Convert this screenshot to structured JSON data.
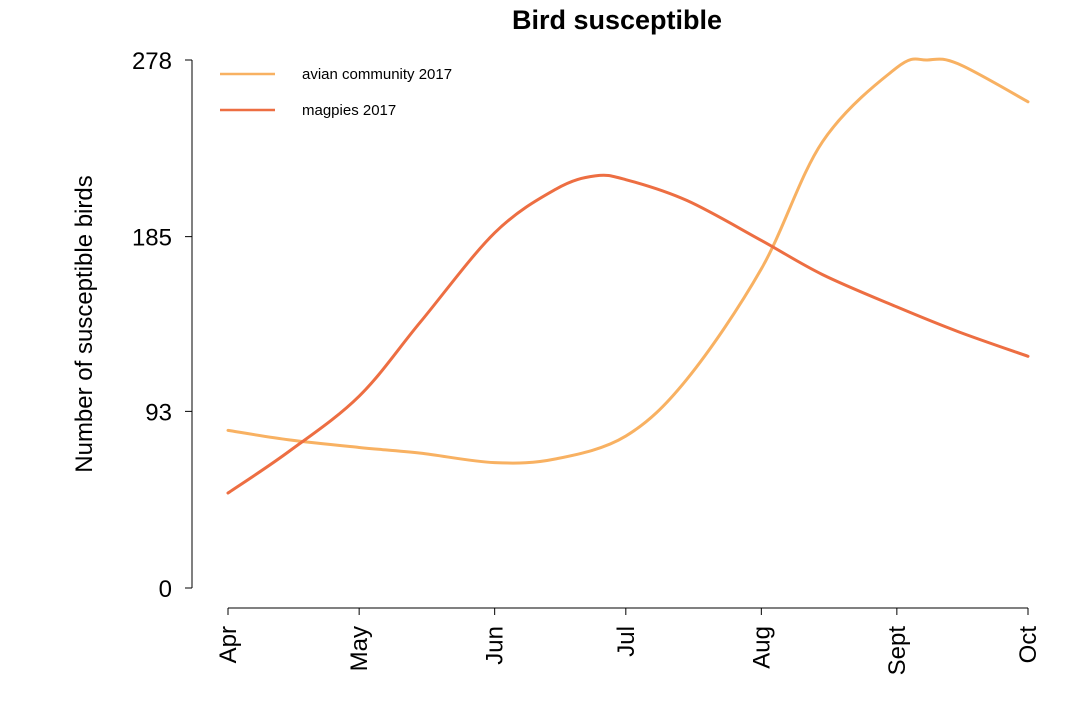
{
  "chart_data": {
    "type": "line",
    "title": "Bird susceptible",
    "xlabel": "",
    "ylabel": "Number of susceptible birds",
    "x_ticks": [
      "Apr",
      "May",
      "Jun",
      "Jul",
      "Aug",
      "Sept",
      "Oct"
    ],
    "y_ticks": [
      "0",
      "93",
      "185",
      "278"
    ],
    "ylim": [
      0,
      278
    ],
    "legend_position": "top-left",
    "grid": false,
    "series": [
      {
        "name": "avian community 2017",
        "color": "#f8b162",
        "x": [
          "Apr 1",
          "Apr 15",
          "May 1",
          "May 15",
          "Jun 1",
          "Jun 15",
          "Jul 1",
          "Jul 15",
          "Aug 1",
          "Aug 15",
          "Sep 1",
          "Sep 8",
          "Sep 15",
          "Oct 1"
        ],
        "y": [
          83,
          78,
          74,
          71,
          66,
          68,
          80,
          110,
          168,
          235,
          274,
          278,
          276,
          256
        ]
      },
      {
        "name": "magpies 2017",
        "color": "#ed6e42",
        "x": [
          "Apr 1",
          "Apr 15",
          "May 1",
          "May 15",
          "Jun 1",
          "Jun 15",
          "Jun 24",
          "Jul 1",
          "Jul 15",
          "Aug 1",
          "Aug 15",
          "Sep 1",
          "Sep 15",
          "Oct 1"
        ],
        "y": [
          50,
          72,
          101,
          140,
          187,
          210,
          217,
          215,
          204,
          183,
          165,
          148,
          135,
          122
        ]
      }
    ]
  }
}
